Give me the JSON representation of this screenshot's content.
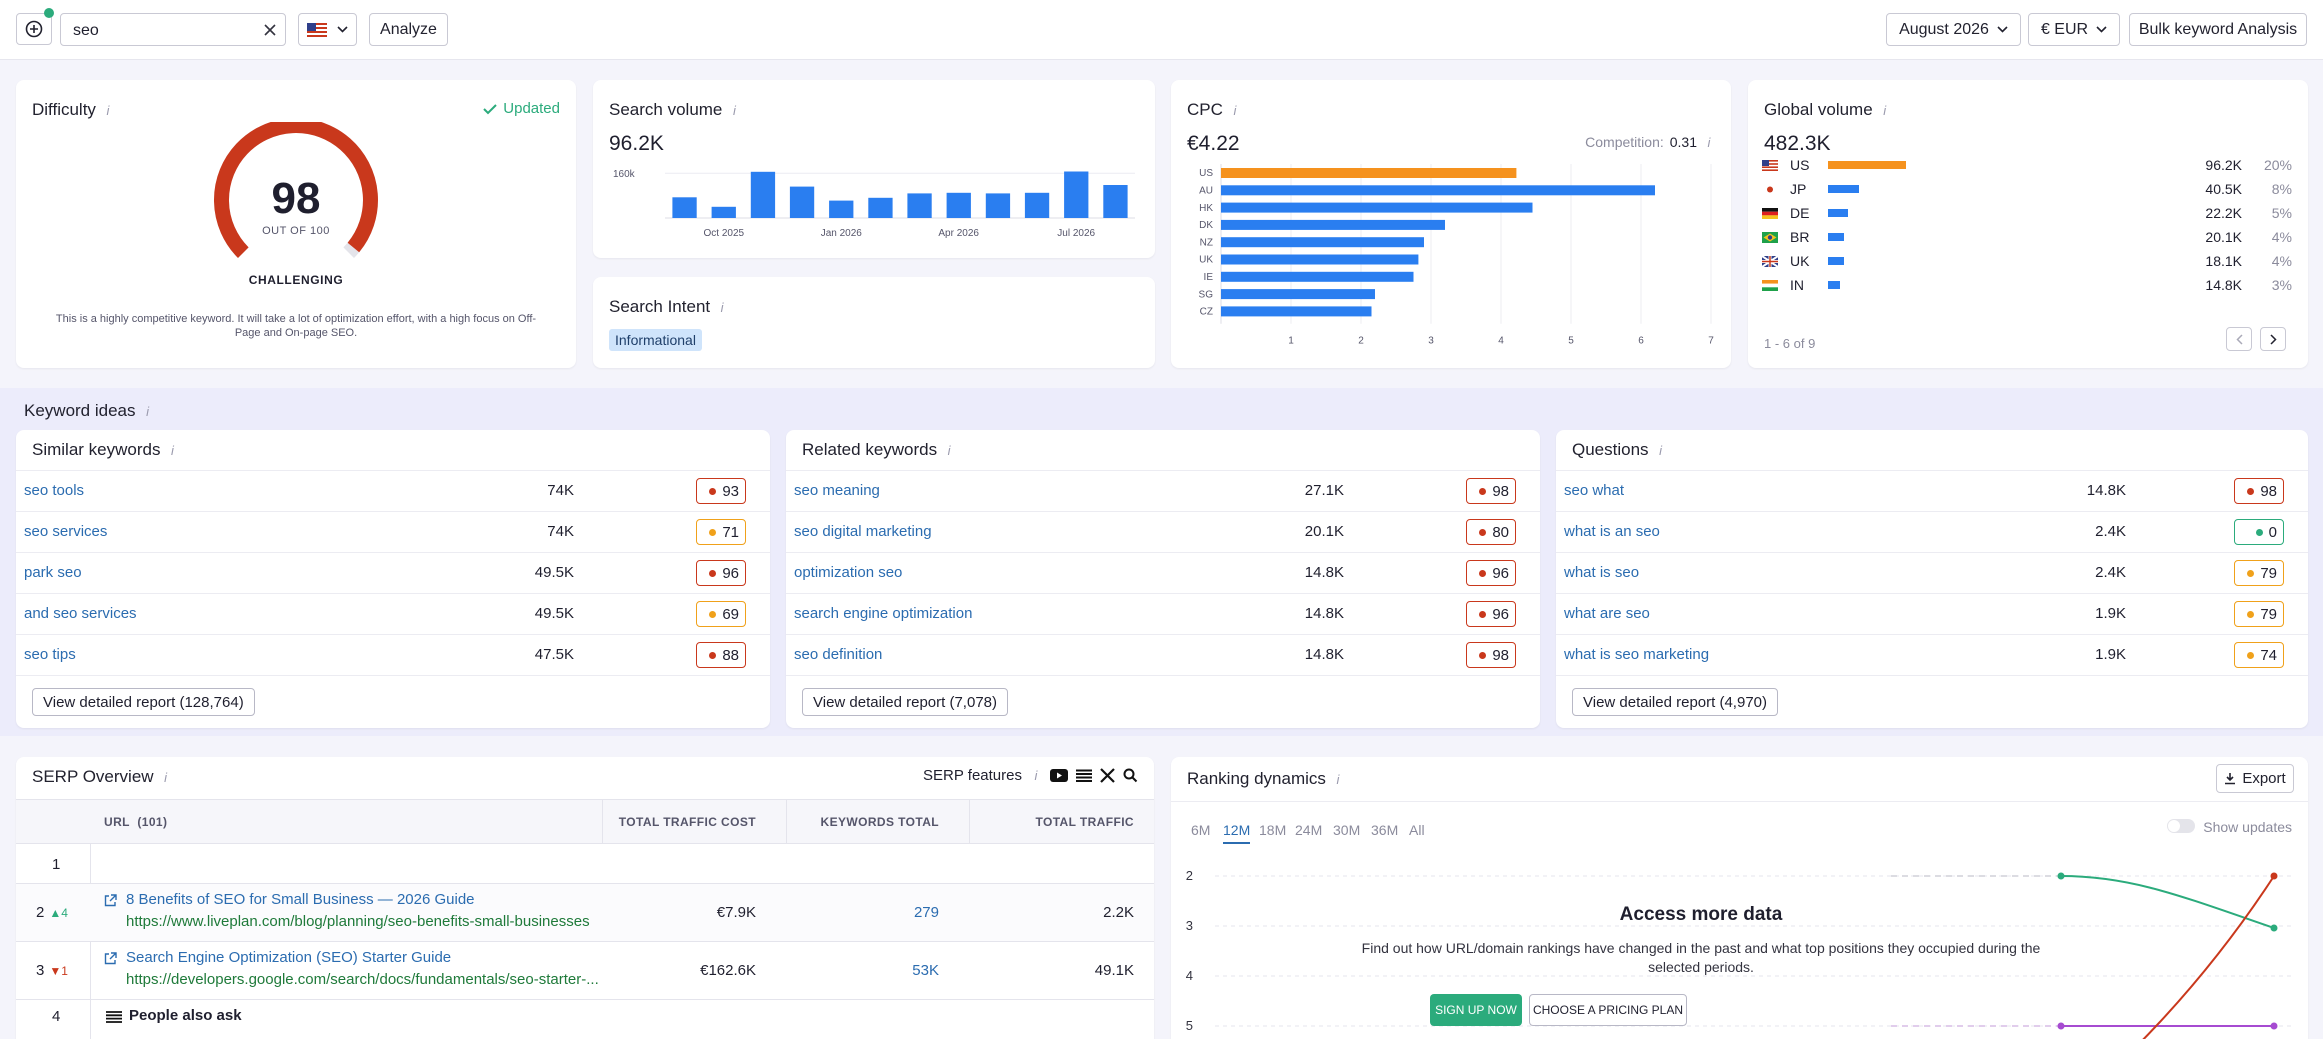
{
  "toolbar": {
    "search_value": "seo",
    "flag_icon": "us-flag-icon",
    "analyze_label": "Analyze",
    "date_label": "August 2026",
    "currency_label": "€ EUR",
    "bulk_label": "Bulk keyword Analysis"
  },
  "difficulty": {
    "title": "Difficulty",
    "updated_label": "Updated",
    "score": "98",
    "score_value": 98,
    "out_of": "OUT OF 100",
    "level": "CHALLENGING",
    "description": "This is a highly competitive keyword. It will take a lot of optimization effort, with a high focus on Off-Page and On-page SEO.",
    "color": "#c9381c"
  },
  "search_volume": {
    "title": "Search volume",
    "value": "96.2K",
    "chart_data": {
      "type": "bar",
      "categories": [
        "Sep 2025",
        "Oct 2025",
        "Nov 2025",
        "Dec 2025",
        "Jan 2026",
        "Feb 2026",
        "Mar 2026",
        "Apr 2026",
        "May 2026",
        "Jun 2026",
        "Jul 2026",
        "Aug 2026"
      ],
      "values": [
        74000,
        40000,
        165000,
        112000,
        62000,
        72000,
        88000,
        90000,
        88000,
        90000,
        166000,
        118000
      ],
      "ytick": "160k",
      "ymax": 200000,
      "xticks": [
        "Oct 2025",
        "Jan 2026",
        "Apr 2026",
        "Jul 2026"
      ],
      "color": "#2a7ef0"
    }
  },
  "search_intent": {
    "title": "Search Intent",
    "tag": "Informational"
  },
  "cpc": {
    "title": "CPC",
    "value": "€4.22",
    "competition_label": "Competition:",
    "competition_value": "0.31",
    "chart_data": {
      "type": "bar",
      "orientation": "horizontal",
      "categories": [
        "US",
        "AU",
        "HK",
        "DK",
        "NZ",
        "UK",
        "IE",
        "SG",
        "CZ"
      ],
      "values": [
        4.22,
        6.2,
        4.45,
        3.2,
        2.9,
        2.82,
        2.75,
        2.2,
        2.15
      ],
      "highlight_color": "#f5921e",
      "color": "#2a7ef0",
      "xticks": [
        "1",
        "2",
        "3",
        "4",
        "5",
        "6",
        "7"
      ],
      "xlim": [
        0,
        7
      ]
    }
  },
  "global_volume": {
    "title": "Global volume",
    "value": "482.3K",
    "pagination": "1 - 6 of 9",
    "rows": [
      {
        "flag": "us-flag-icon",
        "code": "US",
        "volume": "96.2K",
        "share": "20%",
        "share_value": 20,
        "color": "#f5921e"
      },
      {
        "flag": "jp-flag-icon",
        "code": "JP",
        "volume": "40.5K",
        "share": "8%",
        "share_value": 8,
        "color": "#2a7ef0"
      },
      {
        "flag": "de-flag-icon",
        "code": "DE",
        "volume": "22.2K",
        "share": "5%",
        "share_value": 5,
        "color": "#2a7ef0"
      },
      {
        "flag": "br-flag-icon",
        "code": "BR",
        "volume": "20.1K",
        "share": "4%",
        "share_value": 4,
        "color": "#2a7ef0"
      },
      {
        "flag": "uk-flag-icon",
        "code": "UK",
        "volume": "18.1K",
        "share": "4%",
        "share_value": 4,
        "color": "#2a7ef0"
      },
      {
        "flag": "in-flag-icon",
        "code": "IN",
        "volume": "14.8K",
        "share": "3%",
        "share_value": 3,
        "color": "#2a7ef0"
      }
    ]
  },
  "keyword_ideas": {
    "title": "Keyword ideas",
    "similar": {
      "title": "Similar keywords",
      "rows": [
        {
          "kw": "seo tools",
          "vol": "74K",
          "kd": "93",
          "color": "#c9381c"
        },
        {
          "kw": "seo services",
          "vol": "74K",
          "kd": "71",
          "color": "#f0a11a"
        },
        {
          "kw": "park seo",
          "vol": "49.5K",
          "kd": "96",
          "color": "#c9381c"
        },
        {
          "kw": "and seo services",
          "vol": "49.5K",
          "kd": "69",
          "color": "#f0a11a"
        },
        {
          "kw": "seo tips",
          "vol": "47.5K",
          "kd": "88",
          "color": "#c9381c"
        }
      ],
      "report": "View detailed report (128,764)"
    },
    "related": {
      "title": "Related keywords",
      "rows": [
        {
          "kw": "seo meaning",
          "vol": "27.1K",
          "kd": "98",
          "color": "#c9381c"
        },
        {
          "kw": "seo digital marketing",
          "vol": "20.1K",
          "kd": "80",
          "color": "#c9381c"
        },
        {
          "kw": "optimization seo",
          "vol": "14.8K",
          "kd": "96",
          "color": "#c9381c"
        },
        {
          "kw": "search engine optimization",
          "vol": "14.8K",
          "kd": "96",
          "color": "#c9381c"
        },
        {
          "kw": "seo definition",
          "vol": "14.8K",
          "kd": "98",
          "color": "#c9381c"
        }
      ],
      "report": "View detailed report (7,078)"
    },
    "questions": {
      "title": "Questions",
      "rows": [
        {
          "kw": "seo what",
          "vol": "14.8K",
          "kd": "98",
          "color": "#c9381c"
        },
        {
          "kw": "what is an seo",
          "vol": "2.4K",
          "kd": "0",
          "color": "#2bab7c"
        },
        {
          "kw": "what is seo",
          "vol": "2.4K",
          "kd": "79",
          "color": "#f0a11a"
        },
        {
          "kw": "what are seo",
          "vol": "1.9K",
          "kd": "79",
          "color": "#f0a11a"
        },
        {
          "kw": "what is seo marketing",
          "vol": "1.9K",
          "kd": "74",
          "color": "#f0a11a"
        }
      ],
      "report": "View detailed report (4,970)"
    }
  },
  "serp": {
    "title": "SERP Overview",
    "features_label": "SERP features",
    "columns": {
      "url": "URL",
      "url_count": "(101)",
      "cost": "TOTAL TRAFFIC COST",
      "keywords": "KEYWORDS TOTAL",
      "traffic": "TOTAL TRAFFIC"
    },
    "rows": [
      {
        "pos": "1",
        "change": "",
        "title": "",
        "url": "",
        "cost": "",
        "keywords": "",
        "traffic": ""
      },
      {
        "pos": "2",
        "change": "▲4",
        "change_color": "#2bab7c",
        "title": "8 Benefits of SEO for Small Business — 2026 Guide",
        "url": "https://www.liveplan.com/blog/planning/seo-benefits-small-businesses",
        "cost": "€7.9K",
        "keywords": "279",
        "traffic": "2.2K"
      },
      {
        "pos": "3",
        "change": "▼1",
        "change_color": "#c9381c",
        "title": "Search Engine Optimization (SEO) Starter Guide",
        "url": "https://developers.google.com/search/docs/fundamentals/seo-starter-...",
        "cost": "€162.6K",
        "keywords": "53K",
        "traffic": "49.1K"
      },
      {
        "pos": "4",
        "change": "",
        "title": "People also ask",
        "url": "",
        "cost": "",
        "keywords": "",
        "traffic": ""
      }
    ]
  },
  "ranking": {
    "title": "Ranking dynamics",
    "export_label": "Export",
    "tabs": [
      "6M",
      "12M",
      "18M",
      "24M",
      "30M",
      "36M",
      "All"
    ],
    "active_tab": "12M",
    "show_updates": "Show updates",
    "yticks": [
      "2",
      "3",
      "4",
      "5"
    ],
    "access_title": "Access more data",
    "access_text": "Find out how URL/domain rankings have changed in the past and what top positions they occupied during the selected periods.",
    "signup_label": "SIGN UP NOW",
    "pricing_label": "CHOOSE A PRICING PLAN"
  }
}
